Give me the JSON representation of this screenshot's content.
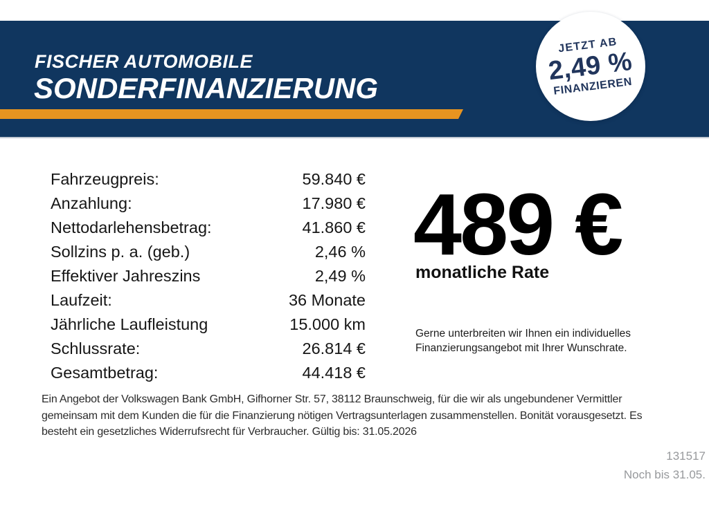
{
  "header": {
    "brand": "FISCHER AUTOMOBILE",
    "title": "SONDERFINANZIERUNG"
  },
  "badge": {
    "line1": "JETZT AB",
    "rate": "2,49 %",
    "line3": "FINANZIEREN"
  },
  "financing": {
    "rows": [
      {
        "label": "Fahrzeugpreis:",
        "value": "59.840 €"
      },
      {
        "label": "Anzahlung:",
        "value": "17.980 €"
      },
      {
        "label": "Nettodarlehensbetrag:",
        "value": "41.860 €"
      },
      {
        "label": "Sollzins p. a. (geb.)",
        "value": "2,46 %"
      },
      {
        "label": "Effektiver Jahreszins",
        "value": "2,49 %"
      },
      {
        "label": "Laufzeit:",
        "value": "36 Monate"
      },
      {
        "label": "Jährliche Laufleistung",
        "value": "15.000 km"
      },
      {
        "label": "Schlussrate:",
        "value": "26.814 €"
      },
      {
        "label": "Gesamtbetrag:",
        "value": "44.418 €"
      }
    ]
  },
  "rate": {
    "amount": "489 €",
    "caption": "monatliche Rate",
    "promo": "Gerne unterbreiten wir Ihnen ein individuelles\nFinanzierungsangebot mit Ihrer Wunschrate."
  },
  "disclaimer": "Ein Angebot der Volkswagen Bank GmbH, Gifhorner Str. 57, 38112 Braunschweig, für die wir als ungebundener Vermittler\ngemeinsam mit dem Kunden die für die Finanzierung nötigen Vertragsunterlagen zusammenstellen. Bonität vorausgesetzt. Es\nbesteht ein gesetzliches Widerrufsrecht für Verbraucher. Gültig bis: 31.05.2026",
  "footer": {
    "offer_id": "131517",
    "validity": "Noch bis 31.05."
  },
  "colors": {
    "navy": "#10365f",
    "orange": "#e79420",
    "badge_text": "#21355c",
    "muted_gray": "#97999c"
  }
}
